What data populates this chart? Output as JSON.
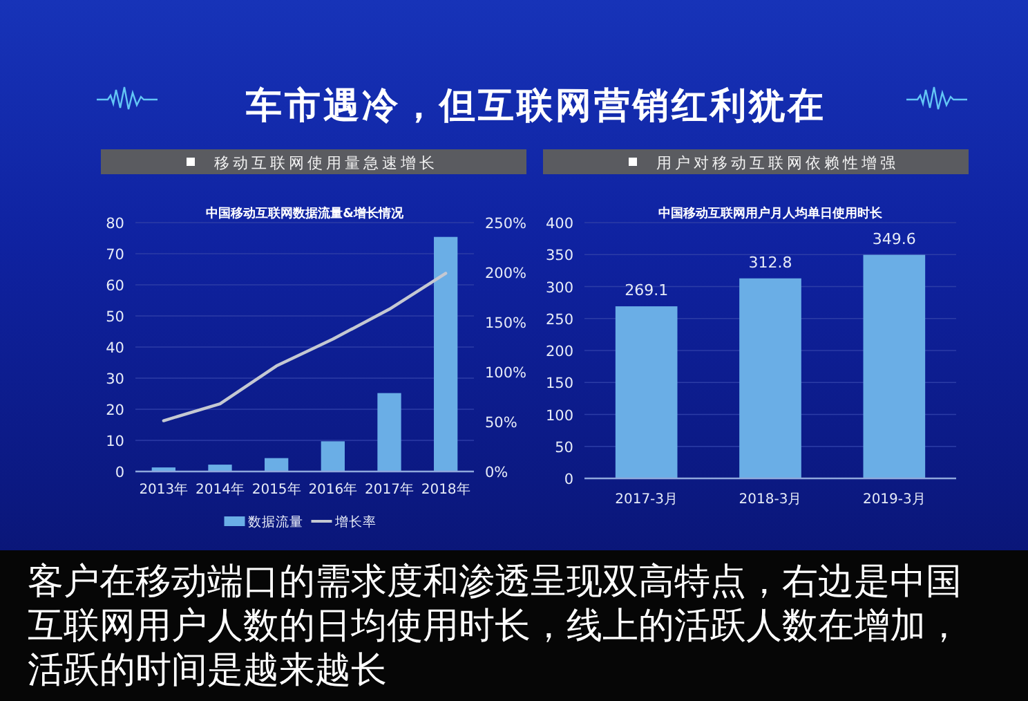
{
  "chart_data": [
    {
      "type": "other",
      "title": "车市遇冷，但互联网营销红利犹在"
    },
    {
      "type": "bar",
      "subtitle": "移动互联网使用量急速增长",
      "title": "中国移动互联网数据流量&增长情况",
      "categories": [
        "2013年",
        "2014年",
        "2015年",
        "2016年",
        "2017年",
        "2018年"
      ],
      "series": [
        {
          "name": "数据流量",
          "type": "bar",
          "color": "#6aaee6",
          "values": [
            1.3,
            2.2,
            4.3,
            9.7,
            25.2,
            75.4
          ]
        },
        {
          "name": "增长率",
          "type": "line",
          "axis": "y2",
          "color": "#c4c8d2",
          "values": [
            51,
            68,
            106,
            133,
            163,
            199
          ]
        }
      ],
      "ylim": [
        0,
        80
      ],
      "yticks": [
        0,
        10,
        20,
        30,
        40,
        50,
        60,
        70,
        80
      ],
      "y2lim": [
        0,
        250
      ],
      "y2ticks": [
        {
          "value": 0,
          "label": "0%"
        },
        {
          "value": 50,
          "label": "50%"
        },
        {
          "value": 100,
          "label": "100%"
        },
        {
          "value": 150,
          "label": "150%"
        },
        {
          "value": 200,
          "label": "200%"
        },
        {
          "value": 250,
          "label": "250%"
        }
      ],
      "grid": "y",
      "legend": "bottom"
    },
    {
      "type": "bar",
      "subtitle": "用户对移动互联网依赖性增强",
      "title": "中国移动互联网用户月人均单日使用时长",
      "categories": [
        "2017-3月",
        "2018-3月",
        "2019-3月"
      ],
      "values": [
        269.1,
        312.8,
        349.6
      ],
      "color": "#6aaee6",
      "ylim": [
        0,
        400
      ],
      "yticks": [
        0,
        50,
        100,
        150,
        200,
        250,
        300,
        350,
        400
      ],
      "grid": "y",
      "data_labels": true
    },
    {
      "type": "other",
      "annotations": [
        "客户在移动端口的需求度和渗透呈现双高特点，右边是中国互联网用户人数的日均使用时长，线上的活跃人数在增加，活跃的时间是越来越长"
      ]
    }
  ]
}
